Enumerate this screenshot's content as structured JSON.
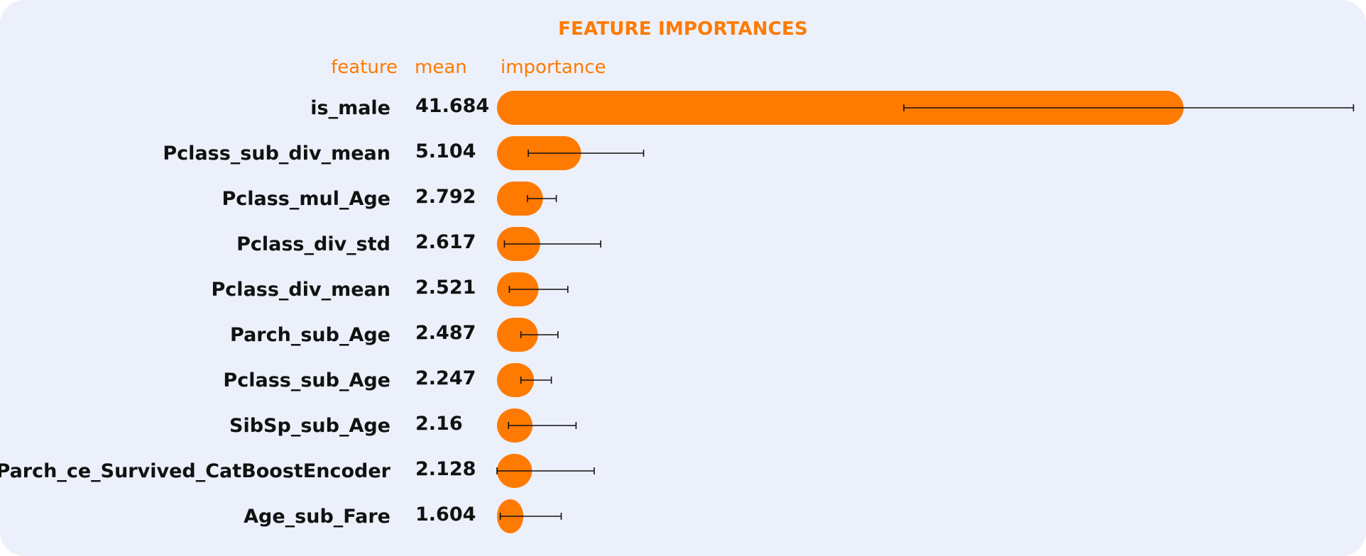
{
  "chart_data": {
    "type": "bar",
    "orientation": "horizontal",
    "title": "FEATURE IMPORTANCES",
    "column_headers": {
      "feature": "feature",
      "mean": "mean",
      "importance": "importance"
    },
    "categories": [
      "is_male",
      "Pclass_sub_div_mean",
      "Pclass_mul_Age",
      "Pclass_div_std",
      "Pclass_div_mean",
      "Parch_sub_Age",
      "Pclass_sub_Age",
      "SibSp_sub_Age",
      "Parch_ce_Survived_CatBoostEncoder",
      "Age_sub_Fare"
    ],
    "values": [
      41.684,
      5.104,
      2.792,
      2.617,
      2.521,
      2.487,
      2.247,
      2.16,
      2.128,
      1.604
    ],
    "value_labels": [
      "41.684",
      "5.104",
      "2.792",
      "2.617",
      "2.521",
      "2.487",
      "2.247",
      "2.16",
      "2.128",
      "1.604"
    ],
    "error_low": [
      24.7,
      1.9,
      1.85,
      0.45,
      0.75,
      1.45,
      1.45,
      0.7,
      0.0,
      0.2
    ],
    "error_high": [
      52.0,
      8.9,
      3.6,
      6.3,
      4.3,
      3.7,
      3.3,
      4.8,
      5.9,
      3.9
    ],
    "xlim": [
      0,
      52
    ],
    "bar_color": "#ff7a00",
    "error_bar_color": "#111111",
    "background_color": "#ecf0fa",
    "header_color": "#ff7a00"
  }
}
